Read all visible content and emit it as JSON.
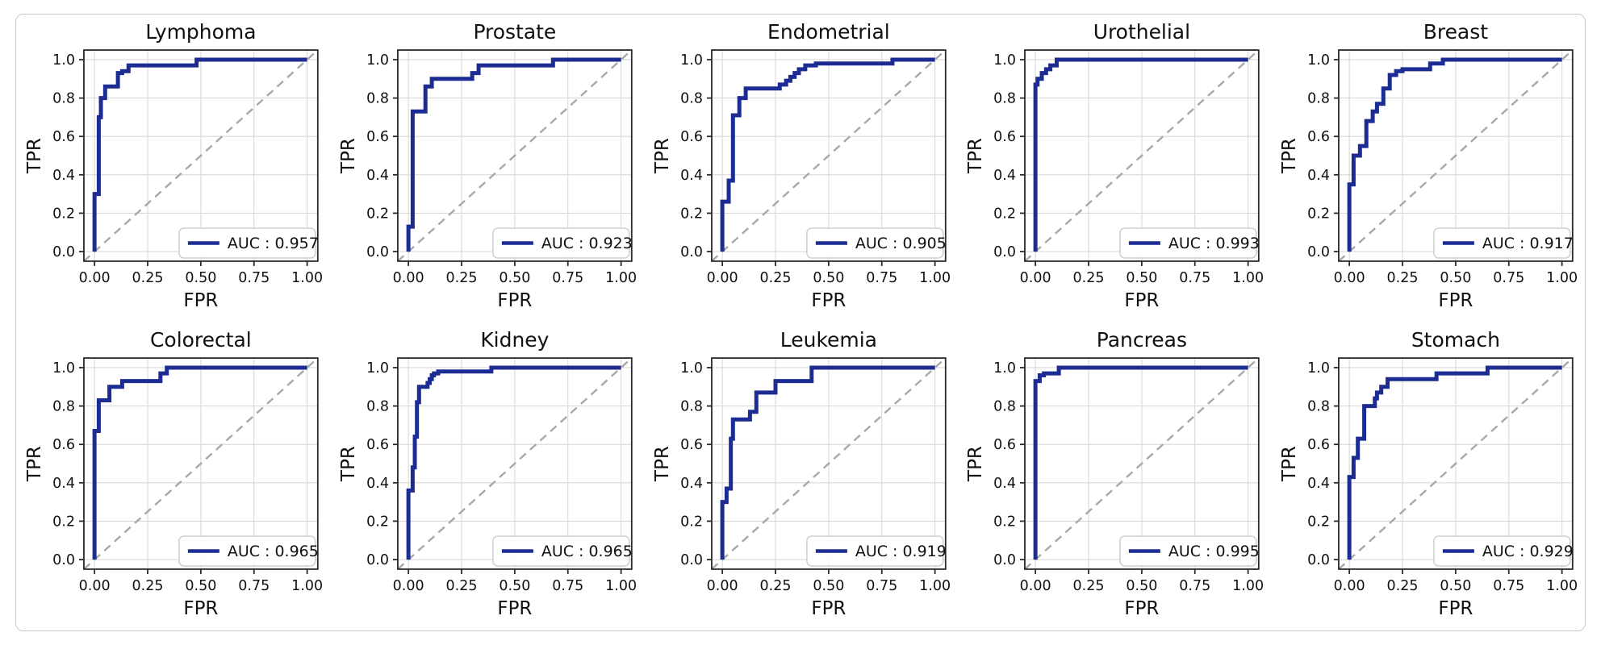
{
  "figure": {
    "layout": "2x5 grid of ROC curve subplots",
    "card_border_color": "#c9c9c9",
    "background_color": "#ffffff"
  },
  "style": {
    "curve_color": "#1c2c92",
    "diagonal_color": "#a8a8a8",
    "grid_color": "#d9d9d9",
    "spine_color": "#2a2a2a",
    "text_color": "#111111",
    "legend_border_color": "#cfcfcf",
    "legend_bg_color": "#ffffff"
  },
  "chart_data": [
    {
      "type": "line",
      "title": "Lymphoma",
      "xlabel": "FPR",
      "ylabel": "TPR",
      "auc": 0.957,
      "legend_label": "AUC : 0.957",
      "xlim": [
        -0.05,
        1.05
      ],
      "ylim": [
        -0.05,
        1.05
      ],
      "x_ticks": [
        0.0,
        0.25,
        0.5,
        0.75,
        1.0
      ],
      "x_tick_labels": [
        "0.00",
        "0.25",
        "0.50",
        "0.75",
        "1.00"
      ],
      "y_ticks": [
        0.0,
        0.2,
        0.4,
        0.6,
        0.8,
        1.0
      ],
      "y_tick_labels": [
        "0.0",
        "0.2",
        "0.4",
        "0.6",
        "0.8",
        "1.0"
      ],
      "grid": true,
      "legend_position": "lower right",
      "diagonal_reference": true,
      "roc_points": [
        [
          0,
          0
        ],
        [
          0,
          0.3
        ],
        [
          0.02,
          0.3
        ],
        [
          0.02,
          0.7
        ],
        [
          0.03,
          0.7
        ],
        [
          0.03,
          0.8
        ],
        [
          0.05,
          0.8
        ],
        [
          0.05,
          0.86
        ],
        [
          0.11,
          0.86
        ],
        [
          0.11,
          0.93
        ],
        [
          0.13,
          0.93
        ],
        [
          0.13,
          0.94
        ],
        [
          0.16,
          0.94
        ],
        [
          0.16,
          0.97
        ],
        [
          0.48,
          0.97
        ],
        [
          0.48,
          1.0
        ],
        [
          1,
          1
        ]
      ]
    },
    {
      "type": "line",
      "title": "Prostate",
      "xlabel": "FPR",
      "ylabel": "TPR",
      "auc": 0.923,
      "legend_label": "AUC : 0.923",
      "xlim": [
        -0.05,
        1.05
      ],
      "ylim": [
        -0.05,
        1.05
      ],
      "x_ticks": [
        0.0,
        0.25,
        0.5,
        0.75,
        1.0
      ],
      "x_tick_labels": [
        "0.00",
        "0.25",
        "0.50",
        "0.75",
        "1.00"
      ],
      "y_ticks": [
        0.0,
        0.2,
        0.4,
        0.6,
        0.8,
        1.0
      ],
      "y_tick_labels": [
        "0.0",
        "0.2",
        "0.4",
        "0.6",
        "0.8",
        "1.0"
      ],
      "grid": true,
      "legend_position": "lower right",
      "diagonal_reference": true,
      "roc_points": [
        [
          0,
          0
        ],
        [
          0,
          0.13
        ],
        [
          0.02,
          0.13
        ],
        [
          0.02,
          0.73
        ],
        [
          0.08,
          0.73
        ],
        [
          0.08,
          0.86
        ],
        [
          0.11,
          0.86
        ],
        [
          0.11,
          0.9
        ],
        [
          0.3,
          0.9
        ],
        [
          0.3,
          0.93
        ],
        [
          0.33,
          0.93
        ],
        [
          0.33,
          0.97
        ],
        [
          0.68,
          0.97
        ],
        [
          0.68,
          1.0
        ],
        [
          1,
          1
        ]
      ]
    },
    {
      "type": "line",
      "title": "Endometrial",
      "xlabel": "FPR",
      "ylabel": "TPR",
      "auc": 0.905,
      "legend_label": "AUC : 0.905",
      "xlim": [
        -0.05,
        1.05
      ],
      "ylim": [
        -0.05,
        1.05
      ],
      "x_ticks": [
        0.0,
        0.25,
        0.5,
        0.75,
        1.0
      ],
      "x_tick_labels": [
        "0.00",
        "0.25",
        "0.50",
        "0.75",
        "1.00"
      ],
      "y_ticks": [
        0.0,
        0.2,
        0.4,
        0.6,
        0.8,
        1.0
      ],
      "y_tick_labels": [
        "0.0",
        "0.2",
        "0.4",
        "0.6",
        "0.8",
        "1.0"
      ],
      "grid": true,
      "legend_position": "lower right",
      "diagonal_reference": true,
      "roc_points": [
        [
          0,
          0
        ],
        [
          0,
          0.26
        ],
        [
          0.03,
          0.26
        ],
        [
          0.03,
          0.37
        ],
        [
          0.05,
          0.37
        ],
        [
          0.05,
          0.71
        ],
        [
          0.08,
          0.71
        ],
        [
          0.08,
          0.8
        ],
        [
          0.11,
          0.8
        ],
        [
          0.11,
          0.85
        ],
        [
          0.27,
          0.85
        ],
        [
          0.27,
          0.87
        ],
        [
          0.3,
          0.87
        ],
        [
          0.3,
          0.89
        ],
        [
          0.32,
          0.89
        ],
        [
          0.32,
          0.91
        ],
        [
          0.34,
          0.91
        ],
        [
          0.34,
          0.93
        ],
        [
          0.36,
          0.93
        ],
        [
          0.36,
          0.95
        ],
        [
          0.39,
          0.95
        ],
        [
          0.39,
          0.97
        ],
        [
          0.44,
          0.97
        ],
        [
          0.44,
          0.98
        ],
        [
          0.8,
          0.98
        ],
        [
          0.8,
          1.0
        ],
        [
          1,
          1
        ]
      ]
    },
    {
      "type": "line",
      "title": "Urothelial",
      "xlabel": "FPR",
      "ylabel": "TPR",
      "auc": 0.993,
      "legend_label": "AUC : 0.993",
      "xlim": [
        -0.05,
        1.05
      ],
      "ylim": [
        -0.05,
        1.05
      ],
      "x_ticks": [
        0.0,
        0.25,
        0.5,
        0.75,
        1.0
      ],
      "x_tick_labels": [
        "0.00",
        "0.25",
        "0.50",
        "0.75",
        "1.00"
      ],
      "y_ticks": [
        0.0,
        0.2,
        0.4,
        0.6,
        0.8,
        1.0
      ],
      "y_tick_labels": [
        "0.0",
        "0.2",
        "0.4",
        "0.6",
        "0.8",
        "1.0"
      ],
      "grid": true,
      "legend_position": "lower right",
      "diagonal_reference": true,
      "roc_points": [
        [
          0,
          0
        ],
        [
          0,
          0.87
        ],
        [
          0.01,
          0.87
        ],
        [
          0.01,
          0.9
        ],
        [
          0.03,
          0.9
        ],
        [
          0.03,
          0.93
        ],
        [
          0.05,
          0.93
        ],
        [
          0.05,
          0.95
        ],
        [
          0.07,
          0.95
        ],
        [
          0.07,
          0.97
        ],
        [
          0.1,
          0.97
        ],
        [
          0.1,
          1.0
        ],
        [
          1,
          1
        ]
      ]
    },
    {
      "type": "line",
      "title": "Breast",
      "xlabel": "FPR",
      "ylabel": "TPR",
      "auc": 0.917,
      "legend_label": "AUC : 0.917",
      "xlim": [
        -0.05,
        1.05
      ],
      "ylim": [
        -0.05,
        1.05
      ],
      "x_ticks": [
        0.0,
        0.25,
        0.5,
        0.75,
        1.0
      ],
      "x_tick_labels": [
        "0.00",
        "0.25",
        "0.50",
        "0.75",
        "1.00"
      ],
      "y_ticks": [
        0.0,
        0.2,
        0.4,
        0.6,
        0.8,
        1.0
      ],
      "y_tick_labels": [
        "0.0",
        "0.2",
        "0.4",
        "0.6",
        "0.8",
        "1.0"
      ],
      "grid": true,
      "legend_position": "lower right",
      "diagonal_reference": true,
      "roc_points": [
        [
          0,
          0
        ],
        [
          0,
          0.35
        ],
        [
          0.02,
          0.35
        ],
        [
          0.02,
          0.5
        ],
        [
          0.05,
          0.5
        ],
        [
          0.05,
          0.55
        ],
        [
          0.08,
          0.55
        ],
        [
          0.08,
          0.68
        ],
        [
          0.11,
          0.68
        ],
        [
          0.11,
          0.73
        ],
        [
          0.13,
          0.73
        ],
        [
          0.13,
          0.77
        ],
        [
          0.16,
          0.77
        ],
        [
          0.16,
          0.85
        ],
        [
          0.19,
          0.85
        ],
        [
          0.19,
          0.92
        ],
        [
          0.22,
          0.92
        ],
        [
          0.22,
          0.94
        ],
        [
          0.25,
          0.94
        ],
        [
          0.25,
          0.95
        ],
        [
          0.38,
          0.95
        ],
        [
          0.38,
          0.98
        ],
        [
          0.44,
          0.98
        ],
        [
          0.44,
          1.0
        ],
        [
          1,
          1
        ]
      ]
    },
    {
      "type": "line",
      "title": "Colorectal",
      "xlabel": "FPR",
      "ylabel": "TPR",
      "auc": 0.965,
      "legend_label": "AUC : 0.965",
      "xlim": [
        -0.05,
        1.05
      ],
      "ylim": [
        -0.05,
        1.05
      ],
      "x_ticks": [
        0.0,
        0.25,
        0.5,
        0.75,
        1.0
      ],
      "x_tick_labels": [
        "0.00",
        "0.25",
        "0.50",
        "0.75",
        "1.00"
      ],
      "y_ticks": [
        0.0,
        0.2,
        0.4,
        0.6,
        0.8,
        1.0
      ],
      "y_tick_labels": [
        "0.0",
        "0.2",
        "0.4",
        "0.6",
        "0.8",
        "1.0"
      ],
      "grid": true,
      "legend_position": "lower right",
      "diagonal_reference": true,
      "roc_points": [
        [
          0,
          0
        ],
        [
          0,
          0.67
        ],
        [
          0.02,
          0.67
        ],
        [
          0.02,
          0.83
        ],
        [
          0.07,
          0.83
        ],
        [
          0.07,
          0.9
        ],
        [
          0.13,
          0.9
        ],
        [
          0.13,
          0.93
        ],
        [
          0.31,
          0.93
        ],
        [
          0.31,
          0.97
        ],
        [
          0.34,
          0.97
        ],
        [
          0.34,
          1.0
        ],
        [
          1,
          1
        ]
      ]
    },
    {
      "type": "line",
      "title": "Kidney",
      "xlabel": "FPR",
      "ylabel": "TPR",
      "auc": 0.965,
      "legend_label": "AUC : 0.965",
      "xlim": [
        -0.05,
        1.05
      ],
      "ylim": [
        -0.05,
        1.05
      ],
      "x_ticks": [
        0.0,
        0.25,
        0.5,
        0.75,
        1.0
      ],
      "x_tick_labels": [
        "0.00",
        "0.25",
        "0.50",
        "0.75",
        "1.00"
      ],
      "y_ticks": [
        0.0,
        0.2,
        0.4,
        0.6,
        0.8,
        1.0
      ],
      "y_tick_labels": [
        "0.0",
        "0.2",
        "0.4",
        "0.6",
        "0.8",
        "1.0"
      ],
      "grid": true,
      "legend_position": "lower right",
      "diagonal_reference": true,
      "roc_points": [
        [
          0,
          0
        ],
        [
          0,
          0.36
        ],
        [
          0.02,
          0.36
        ],
        [
          0.02,
          0.48
        ],
        [
          0.03,
          0.48
        ],
        [
          0.03,
          0.64
        ],
        [
          0.04,
          0.64
        ],
        [
          0.04,
          0.82
        ],
        [
          0.05,
          0.82
        ],
        [
          0.05,
          0.9
        ],
        [
          0.09,
          0.9
        ],
        [
          0.09,
          0.92
        ],
        [
          0.1,
          0.92
        ],
        [
          0.1,
          0.94
        ],
        [
          0.11,
          0.94
        ],
        [
          0.11,
          0.96
        ],
        [
          0.12,
          0.96
        ],
        [
          0.12,
          0.97
        ],
        [
          0.14,
          0.97
        ],
        [
          0.14,
          0.98
        ],
        [
          0.39,
          0.98
        ],
        [
          0.39,
          1.0
        ],
        [
          1,
          1
        ]
      ]
    },
    {
      "type": "line",
      "title": "Leukemia",
      "xlabel": "FPR",
      "ylabel": "TPR",
      "auc": 0.919,
      "legend_label": "AUC : 0.919",
      "xlim": [
        -0.05,
        1.05
      ],
      "ylim": [
        -0.05,
        1.05
      ],
      "x_ticks": [
        0.0,
        0.25,
        0.5,
        0.75,
        1.0
      ],
      "x_tick_labels": [
        "0.00",
        "0.25",
        "0.50",
        "0.75",
        "1.00"
      ],
      "y_ticks": [
        0.0,
        0.2,
        0.4,
        0.6,
        0.8,
        1.0
      ],
      "y_tick_labels": [
        "0.0",
        "0.2",
        "0.4",
        "0.6",
        "0.8",
        "1.0"
      ],
      "grid": true,
      "legend_position": "lower right",
      "diagonal_reference": true,
      "roc_points": [
        [
          0,
          0
        ],
        [
          0,
          0.3
        ],
        [
          0.02,
          0.3
        ],
        [
          0.02,
          0.37
        ],
        [
          0.04,
          0.37
        ],
        [
          0.04,
          0.63
        ],
        [
          0.05,
          0.63
        ],
        [
          0.05,
          0.73
        ],
        [
          0.13,
          0.73
        ],
        [
          0.13,
          0.77
        ],
        [
          0.16,
          0.77
        ],
        [
          0.16,
          0.87
        ],
        [
          0.25,
          0.87
        ],
        [
          0.25,
          0.93
        ],
        [
          0.42,
          0.93
        ],
        [
          0.42,
          1.0
        ],
        [
          1,
          1
        ]
      ]
    },
    {
      "type": "line",
      "title": "Pancreas",
      "xlabel": "FPR",
      "ylabel": "TPR",
      "auc": 0.995,
      "legend_label": "AUC : 0.995",
      "xlim": [
        -0.05,
        1.05
      ],
      "ylim": [
        -0.05,
        1.05
      ],
      "x_ticks": [
        0.0,
        0.25,
        0.5,
        0.75,
        1.0
      ],
      "x_tick_labels": [
        "0.00",
        "0.25",
        "0.50",
        "0.75",
        "1.00"
      ],
      "y_ticks": [
        0.0,
        0.2,
        0.4,
        0.6,
        0.8,
        1.0
      ],
      "y_tick_labels": [
        "0.0",
        "0.2",
        "0.4",
        "0.6",
        "0.8",
        "1.0"
      ],
      "grid": true,
      "legend_position": "lower right",
      "diagonal_reference": true,
      "roc_points": [
        [
          0,
          0
        ],
        [
          0,
          0.93
        ],
        [
          0.02,
          0.93
        ],
        [
          0.02,
          0.96
        ],
        [
          0.04,
          0.96
        ],
        [
          0.04,
          0.97
        ],
        [
          0.11,
          0.97
        ],
        [
          0.11,
          1.0
        ],
        [
          1,
          1
        ]
      ]
    },
    {
      "type": "line",
      "title": "Stomach",
      "xlabel": "FPR",
      "ylabel": "TPR",
      "auc": 0.929,
      "legend_label": "AUC : 0.929",
      "xlim": [
        -0.05,
        1.05
      ],
      "ylim": [
        -0.05,
        1.05
      ],
      "x_ticks": [
        0.0,
        0.25,
        0.5,
        0.75,
        1.0
      ],
      "x_tick_labels": [
        "0.00",
        "0.25",
        "0.50",
        "0.75",
        "1.00"
      ],
      "y_ticks": [
        0.0,
        0.2,
        0.4,
        0.6,
        0.8,
        1.0
      ],
      "y_tick_labels": [
        "0.0",
        "0.2",
        "0.4",
        "0.6",
        "0.8",
        "1.0"
      ],
      "grid": true,
      "legend_position": "lower right",
      "diagonal_reference": true,
      "roc_points": [
        [
          0,
          0
        ],
        [
          0,
          0.43
        ],
        [
          0.02,
          0.43
        ],
        [
          0.02,
          0.53
        ],
        [
          0.04,
          0.53
        ],
        [
          0.04,
          0.63
        ],
        [
          0.07,
          0.63
        ],
        [
          0.07,
          0.8
        ],
        [
          0.12,
          0.8
        ],
        [
          0.12,
          0.84
        ],
        [
          0.13,
          0.84
        ],
        [
          0.13,
          0.87
        ],
        [
          0.15,
          0.87
        ],
        [
          0.15,
          0.9
        ],
        [
          0.18,
          0.9
        ],
        [
          0.18,
          0.94
        ],
        [
          0.41,
          0.94
        ],
        [
          0.41,
          0.97
        ],
        [
          0.65,
          0.97
        ],
        [
          0.65,
          1.0
        ],
        [
          1,
          1
        ]
      ]
    }
  ]
}
